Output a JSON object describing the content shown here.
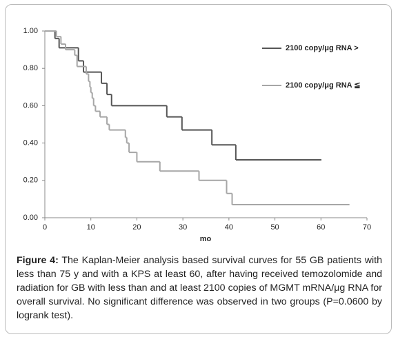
{
  "chart_data": {
    "type": "step",
    "series": [
      {
        "name": "2100 copy/μg RNA >",
        "color": "#555555",
        "x": [
          0,
          2.2,
          3.1,
          7.3,
          8.4,
          12.3,
          13.5,
          14.5,
          26.5,
          29.8,
          36.3,
          41.5,
          60.1
        ],
        "values": [
          1.0,
          0.96,
          0.91,
          0.84,
          0.78,
          0.72,
          0.66,
          0.6,
          0.54,
          0.47,
          0.39,
          0.31,
          0.31
        ]
      },
      {
        "name": "2100 copy/μg RNA ≦",
        "color": "#a6a6a6",
        "x": [
          0,
          2.5,
          3.5,
          4.5,
          6.5,
          7,
          9,
          9.5,
          9.8,
          10,
          10.3,
          10.6,
          11,
          12,
          13.5,
          14,
          17.5,
          17.8,
          18.3,
          20,
          25,
          33.5,
          39.5,
          40.7,
          66.2
        ],
        "values": [
          1.0,
          0.97,
          0.93,
          0.9,
          0.87,
          0.81,
          0.77,
          0.73,
          0.7,
          0.67,
          0.64,
          0.6,
          0.57,
          0.54,
          0.5,
          0.47,
          0.43,
          0.4,
          0.35,
          0.3,
          0.25,
          0.2,
          0.13,
          0.07,
          0.07
        ]
      }
    ],
    "x_label": "mo",
    "xlim": [
      0,
      70
    ],
    "xticks": [
      0,
      10,
      20,
      30,
      40,
      50,
      60,
      70
    ],
    "ylim": [
      0,
      1
    ],
    "yticks": [
      {
        "value": 0,
        "label": "0.00"
      },
      {
        "value": 0.2,
        "label": "0.20"
      },
      {
        "value": 0.4,
        "label": "0.40"
      },
      {
        "value": 0.6,
        "label": "0.60"
      },
      {
        "value": 0.8,
        "label": "0.80"
      },
      {
        "value": 1,
        "label": "1.00"
      }
    ],
    "legend": "right"
  },
  "caption": {
    "label": "Figure 4:",
    "text": "The Kaplan-Meier analysis based survival curves for 55 GB patients with less than 75 y and with a KPS at least 60, after having received temozolomide and radiation for GB with less than and at least 2100 copies of MGMT mRNA/μg RNA for overall survival. No significant difference was observed in two groups (P=0.0600 by logrank test)."
  }
}
